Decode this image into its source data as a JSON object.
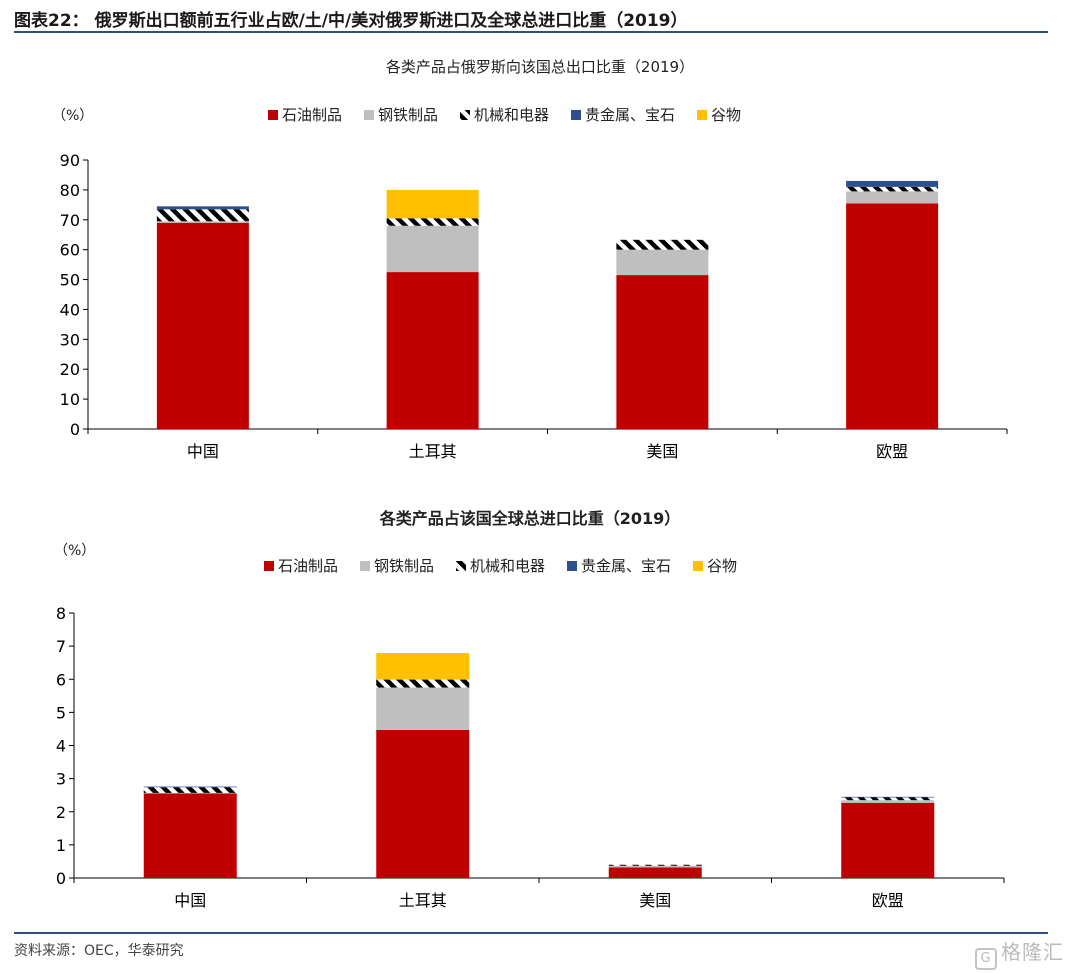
{
  "figure_title": "图表22：  俄罗斯出口额前五行业占欧/土/中/美对俄罗斯进口及全球总进口比重（2019）",
  "source": "资料来源：OEC，华泰研究",
  "watermark": "格隆汇",
  "colors": {
    "石油制品": "#c00000",
    "钢铁制品": "#bfbfbf",
    "机械和电器": "hatch",
    "贵金属、宝石": "#2e4f8f",
    "谷物": "#ffc000",
    "rule": "#2f4f80"
  },
  "chart_data": [
    {
      "type": "bar",
      "stacked": true,
      "title": "各类产品占俄罗斯向该国总出口比重（2019）",
      "ylabel": "（%）",
      "ylim": [
        0,
        90
      ],
      "yticks": [
        0,
        10,
        20,
        30,
        40,
        50,
        60,
        70,
        80,
        90
      ],
      "categories": [
        "中国",
        "土耳其",
        "美国",
        "欧盟"
      ],
      "legend_position": "top",
      "series": [
        {
          "name": "石油制品",
          "values": [
            69,
            52.5,
            51.5,
            75.5
          ]
        },
        {
          "name": "钢铁制品",
          "values": [
            0.5,
            15.5,
            8.5,
            4
          ]
        },
        {
          "name": "机械和电器",
          "values": [
            4,
            2.5,
            3.3,
            1.5
          ]
        },
        {
          "name": "贵金属、宝石",
          "values": [
            1,
            0,
            0,
            2
          ]
        },
        {
          "name": "谷物",
          "values": [
            0,
            9.5,
            0,
            0
          ]
        }
      ]
    },
    {
      "type": "bar",
      "stacked": true,
      "title": "各类产品占该国全球总进口比重（2019）",
      "ylabel": "（%）",
      "ylim": [
        0,
        8
      ],
      "yticks": [
        0,
        1,
        2,
        3,
        4,
        5,
        6,
        7,
        8
      ],
      "categories": [
        "中国",
        "土耳其",
        "美国",
        "欧盟"
      ],
      "legend_position": "top",
      "series": [
        {
          "name": "石油制品",
          "values": [
            2.55,
            4.47,
            0.32,
            2.27
          ]
        },
        {
          "name": "钢铁制品",
          "values": [
            0.02,
            1.28,
            0.05,
            0.08
          ]
        },
        {
          "name": "机械和电器",
          "values": [
            0.17,
            0.24,
            0.03,
            0.08
          ]
        },
        {
          "name": "贵金属、宝石",
          "values": [
            0.02,
            0,
            0,
            0.02
          ]
        },
        {
          "name": "谷物",
          "values": [
            0,
            0.8,
            0,
            0
          ]
        }
      ]
    }
  ]
}
